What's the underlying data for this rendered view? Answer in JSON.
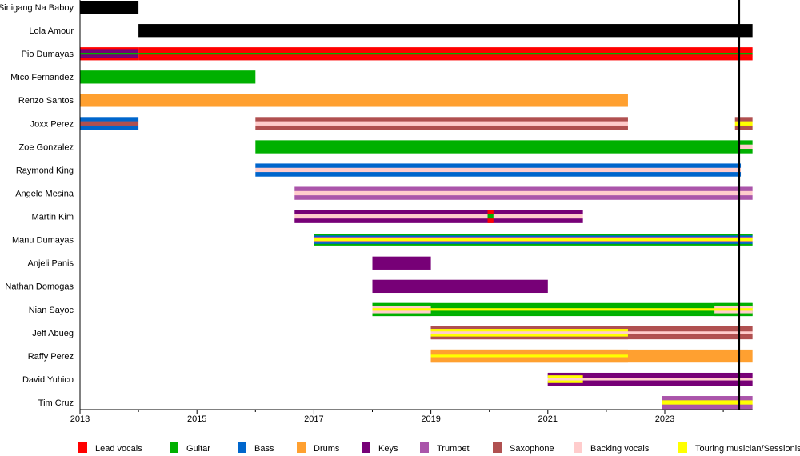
{
  "chart_data": {
    "type": "timeline",
    "xlim": [
      2013,
      2024.5
    ],
    "x_ticks": [
      2013,
      2015,
      2017,
      2019,
      2021,
      2023
    ],
    "marker_line": 2024.27,
    "colors": {
      "Lead vocals": "#ff0000",
      "Guitar": "#00b000",
      "Bass": "#0066cc",
      "Drums": "#ffa030",
      "Keys": "#770077",
      "Trumpet": "#aa55aa",
      "Saxophone": "#b05050",
      "Backing vocals": "#ffcccc",
      "Touring musician/Sessionist": "#ffff00",
      "Black": "#000000"
    },
    "legend": [
      "Lead vocals",
      "Guitar",
      "Bass",
      "Drums",
      "Keys",
      "Trumpet",
      "Saxophone",
      "Backing vocals",
      "Touring musician/Sessionist"
    ],
    "members": [
      {
        "name": "Sinigang Na Baboy",
        "periods": [
          {
            "start": 2013,
            "end": 2014,
            "stripes": [
              "Black"
            ]
          }
        ]
      },
      {
        "name": "Lola Amour",
        "periods": [
          {
            "start": 2014,
            "end": 2024.5,
            "stripes": [
              "Black"
            ]
          }
        ]
      },
      {
        "name": "Pio Dumayas",
        "periods": [
          {
            "start": 2013,
            "end": 2014,
            "stripes": [
              "Lead vocals",
              "Keys",
              "Keys",
              "Guitar",
              "Keys",
              "Keys",
              "Lead vocals"
            ]
          },
          {
            "start": 2014,
            "end": 2024.5,
            "stripes": [
              "Lead vocals",
              "Lead vocals",
              "Lead vocals",
              "Guitar",
              "Lead vocals",
              "Lead vocals",
              "Lead vocals"
            ]
          }
        ]
      },
      {
        "name": "Mico Fernandez",
        "periods": [
          {
            "start": 2013,
            "end": 2016,
            "stripes": [
              "Guitar"
            ]
          }
        ]
      },
      {
        "name": "Renzo Santos",
        "periods": [
          {
            "start": 2013,
            "end": 2022.37,
            "stripes": [
              "Drums"
            ]
          }
        ]
      },
      {
        "name": "Joxx Perez",
        "periods": [
          {
            "start": 2013,
            "end": 2014,
            "stripes": [
              "Bass",
              "Saxophone",
              "Bass"
            ]
          },
          {
            "start": 2016,
            "end": 2022.37,
            "stripes": [
              "Saxophone",
              "Backing vocals",
              "Saxophone"
            ]
          },
          {
            "start": 2024.2,
            "end": 2024.5,
            "stripes": [
              "Saxophone",
              "Touring musician/Sessionist",
              "Saxophone"
            ]
          }
        ]
      },
      {
        "name": "Zoe Gonzalez",
        "periods": [
          {
            "start": 2016,
            "end": 2024.27,
            "stripes": [
              "Guitar"
            ]
          },
          {
            "start": 2024.27,
            "end": 2024.5,
            "stripes": [
              "Guitar",
              "Backing vocals",
              "Guitar"
            ]
          }
        ]
      },
      {
        "name": "Raymond King",
        "periods": [
          {
            "start": 2016,
            "end": 2024.3,
            "stripes": [
              "Bass",
              "Backing vocals",
              "Bass"
            ]
          }
        ]
      },
      {
        "name": "Angelo Mesina",
        "periods": [
          {
            "start": 2016.67,
            "end": 2024.5,
            "stripes": [
              "Trumpet",
              "Backing vocals",
              "Trumpet"
            ]
          }
        ]
      },
      {
        "name": "Martin Kim",
        "periods": [
          {
            "start": 2016.67,
            "end": 2021.6,
            "stripes": [
              "Keys",
              "Backing vocals",
              "Keys"
            ]
          },
          {
            "start": 2019.97,
            "end": 2020.07,
            "stripes": [
              "Lead vocals",
              "Guitar",
              "Lead vocals"
            ]
          }
        ]
      },
      {
        "name": "Manu Dumayas",
        "periods": [
          {
            "start": 2017,
            "end": 2024.5,
            "stripes": [
              "Guitar",
              "Bass",
              "Trumpet",
              "Touring musician/Sessionist",
              "Touring musician/Sessionist",
              "Trumpet",
              "Bass",
              "Guitar"
            ]
          }
        ]
      },
      {
        "name": "Anjeli Panis",
        "periods": [
          {
            "start": 2018,
            "end": 2019,
            "stripes": [
              "Keys"
            ]
          }
        ]
      },
      {
        "name": "Nathan Domogas",
        "periods": [
          {
            "start": 2018,
            "end": 2021,
            "stripes": [
              "Keys"
            ]
          }
        ]
      },
      {
        "name": "Nian Sayoc",
        "periods": [
          {
            "start": 2018,
            "end": 2024.5,
            "stripes": [
              "Guitar",
              "Guitar",
              "Touring musician/Sessionist",
              "Guitar",
              "Guitar"
            ]
          },
          {
            "start": 2018,
            "end": 2019,
            "stripes": [
              "Guitar",
              "Backing vocals",
              "Touring musician/Sessionist",
              "Backing vocals",
              "Guitar"
            ]
          },
          {
            "start": 2023.85,
            "end": 2024.5,
            "stripes": [
              "Guitar",
              "Backing vocals",
              "Touring musician/Sessionist",
              "Backing vocals",
              "Guitar"
            ]
          }
        ]
      },
      {
        "name": "Jeff Abueg",
        "periods": [
          {
            "start": 2019,
            "end": 2024.5,
            "stripes": [
              "Saxophone",
              "Saxophone",
              "Backing vocals",
              "Saxophone",
              "Saxophone"
            ]
          },
          {
            "start": 2019,
            "end": 2022.37,
            "stripes": [
              "Saxophone",
              "Touring musician/Sessionist",
              "Backing vocals",
              "Touring musician/Sessionist",
              "Saxophone"
            ]
          }
        ]
      },
      {
        "name": "Raffy Perez",
        "periods": [
          {
            "start": 2019,
            "end": 2024.5,
            "stripes": [
              "Drums"
            ]
          },
          {
            "start": 2019,
            "end": 2022.37,
            "stripes": [
              "Drums",
              "Drums",
              "Touring musician/Sessionist",
              "Drums",
              "Drums"
            ]
          }
        ]
      },
      {
        "name": "David Yuhico",
        "periods": [
          {
            "start": 2021,
            "end": 2024.5,
            "stripes": [
              "Keys",
              "Keys",
              "Backing vocals",
              "Keys",
              "Keys"
            ]
          },
          {
            "start": 2021,
            "end": 2021.6,
            "stripes": [
              "Keys",
              "Touring musician/Sessionist",
              "Backing vocals",
              "Touring musician/Sessionist",
              "Keys"
            ]
          }
        ]
      },
      {
        "name": "Tim Cruz",
        "periods": [
          {
            "start": 2022.95,
            "end": 2024.5,
            "stripes": [
              "Trumpet",
              "Touring musician/Sessionist",
              "Trumpet"
            ]
          }
        ]
      }
    ]
  }
}
